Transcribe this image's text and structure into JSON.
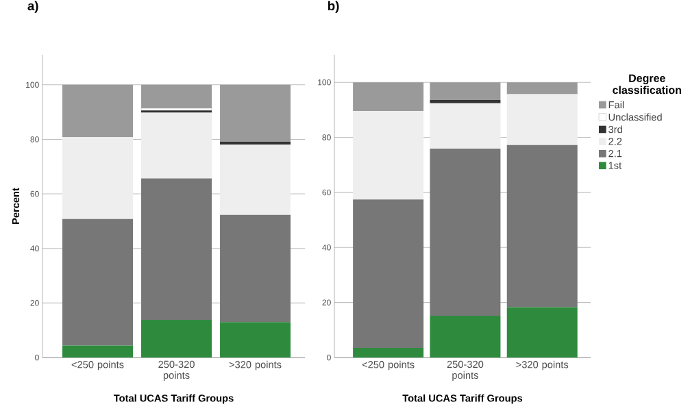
{
  "chart_data": [
    {
      "type": "bar",
      "title": "a)",
      "stacked": true,
      "xlabel": "Total UCAS Tariff Groups",
      "ylabel": "Percent",
      "categories": [
        "<250 points",
        "250-320 points",
        ">320 points"
      ],
      "ylim": [
        0,
        111
      ],
      "yticks": [
        0,
        20,
        40,
        60,
        80,
        100
      ],
      "grid": "y",
      "series": [
        {
          "color": "#2e8b3e",
          "values": [
            4.4,
            13.8,
            13.0
          ]
        },
        {
          "color": "#777777",
          "values": [
            46.4,
            51.9,
            39.3
          ]
        },
        {
          "color": "#eeeeee",
          "values": [
            30.0,
            24.1,
            25.8
          ]
        },
        {
          "color": "#333333",
          "values": [
            0,
            0.8,
            1.0
          ]
        },
        {
          "color": "#ffffff",
          "values": [
            0,
            0.8,
            0
          ]
        },
        {
          "color": "#9a9a9a",
          "values": [
            19.2,
            8.6,
            20.9
          ]
        }
      ]
    },
    {
      "type": "bar",
      "title": "b)",
      "stacked": true,
      "xlabel": "Total UCAS Tariff Groups",
      "legend_title": "Degree classification",
      "legend": "right",
      "categories": [
        "<250 points",
        "250-320 points",
        ">320 points"
      ],
      "ylim": [
        0,
        110
      ],
      "yticks": [
        0,
        20,
        40,
        60,
        80,
        100
      ],
      "grid": "y",
      "series": [
        {
          "name": "1st",
          "color": "#2e8b3e",
          "values": [
            3.5,
            15.2,
            18.3
          ]
        },
        {
          "name": "2.1",
          "color": "#777777",
          "values": [
            53.9,
            60.7,
            58.9
          ]
        },
        {
          "name": "2.2",
          "color": "#eeeeee",
          "values": [
            32.2,
            16.5,
            18.5
          ]
        },
        {
          "name": "3rd",
          "color": "#333333",
          "values": [
            0,
            1.2,
            0
          ]
        },
        {
          "name": "Unclassified",
          "color": "#ffffff",
          "values": [
            0,
            0,
            0
          ]
        },
        {
          "name": "Fail",
          "color": "#9a9a9a",
          "values": [
            10.4,
            6.4,
            4.3
          ]
        }
      ]
    }
  ]
}
